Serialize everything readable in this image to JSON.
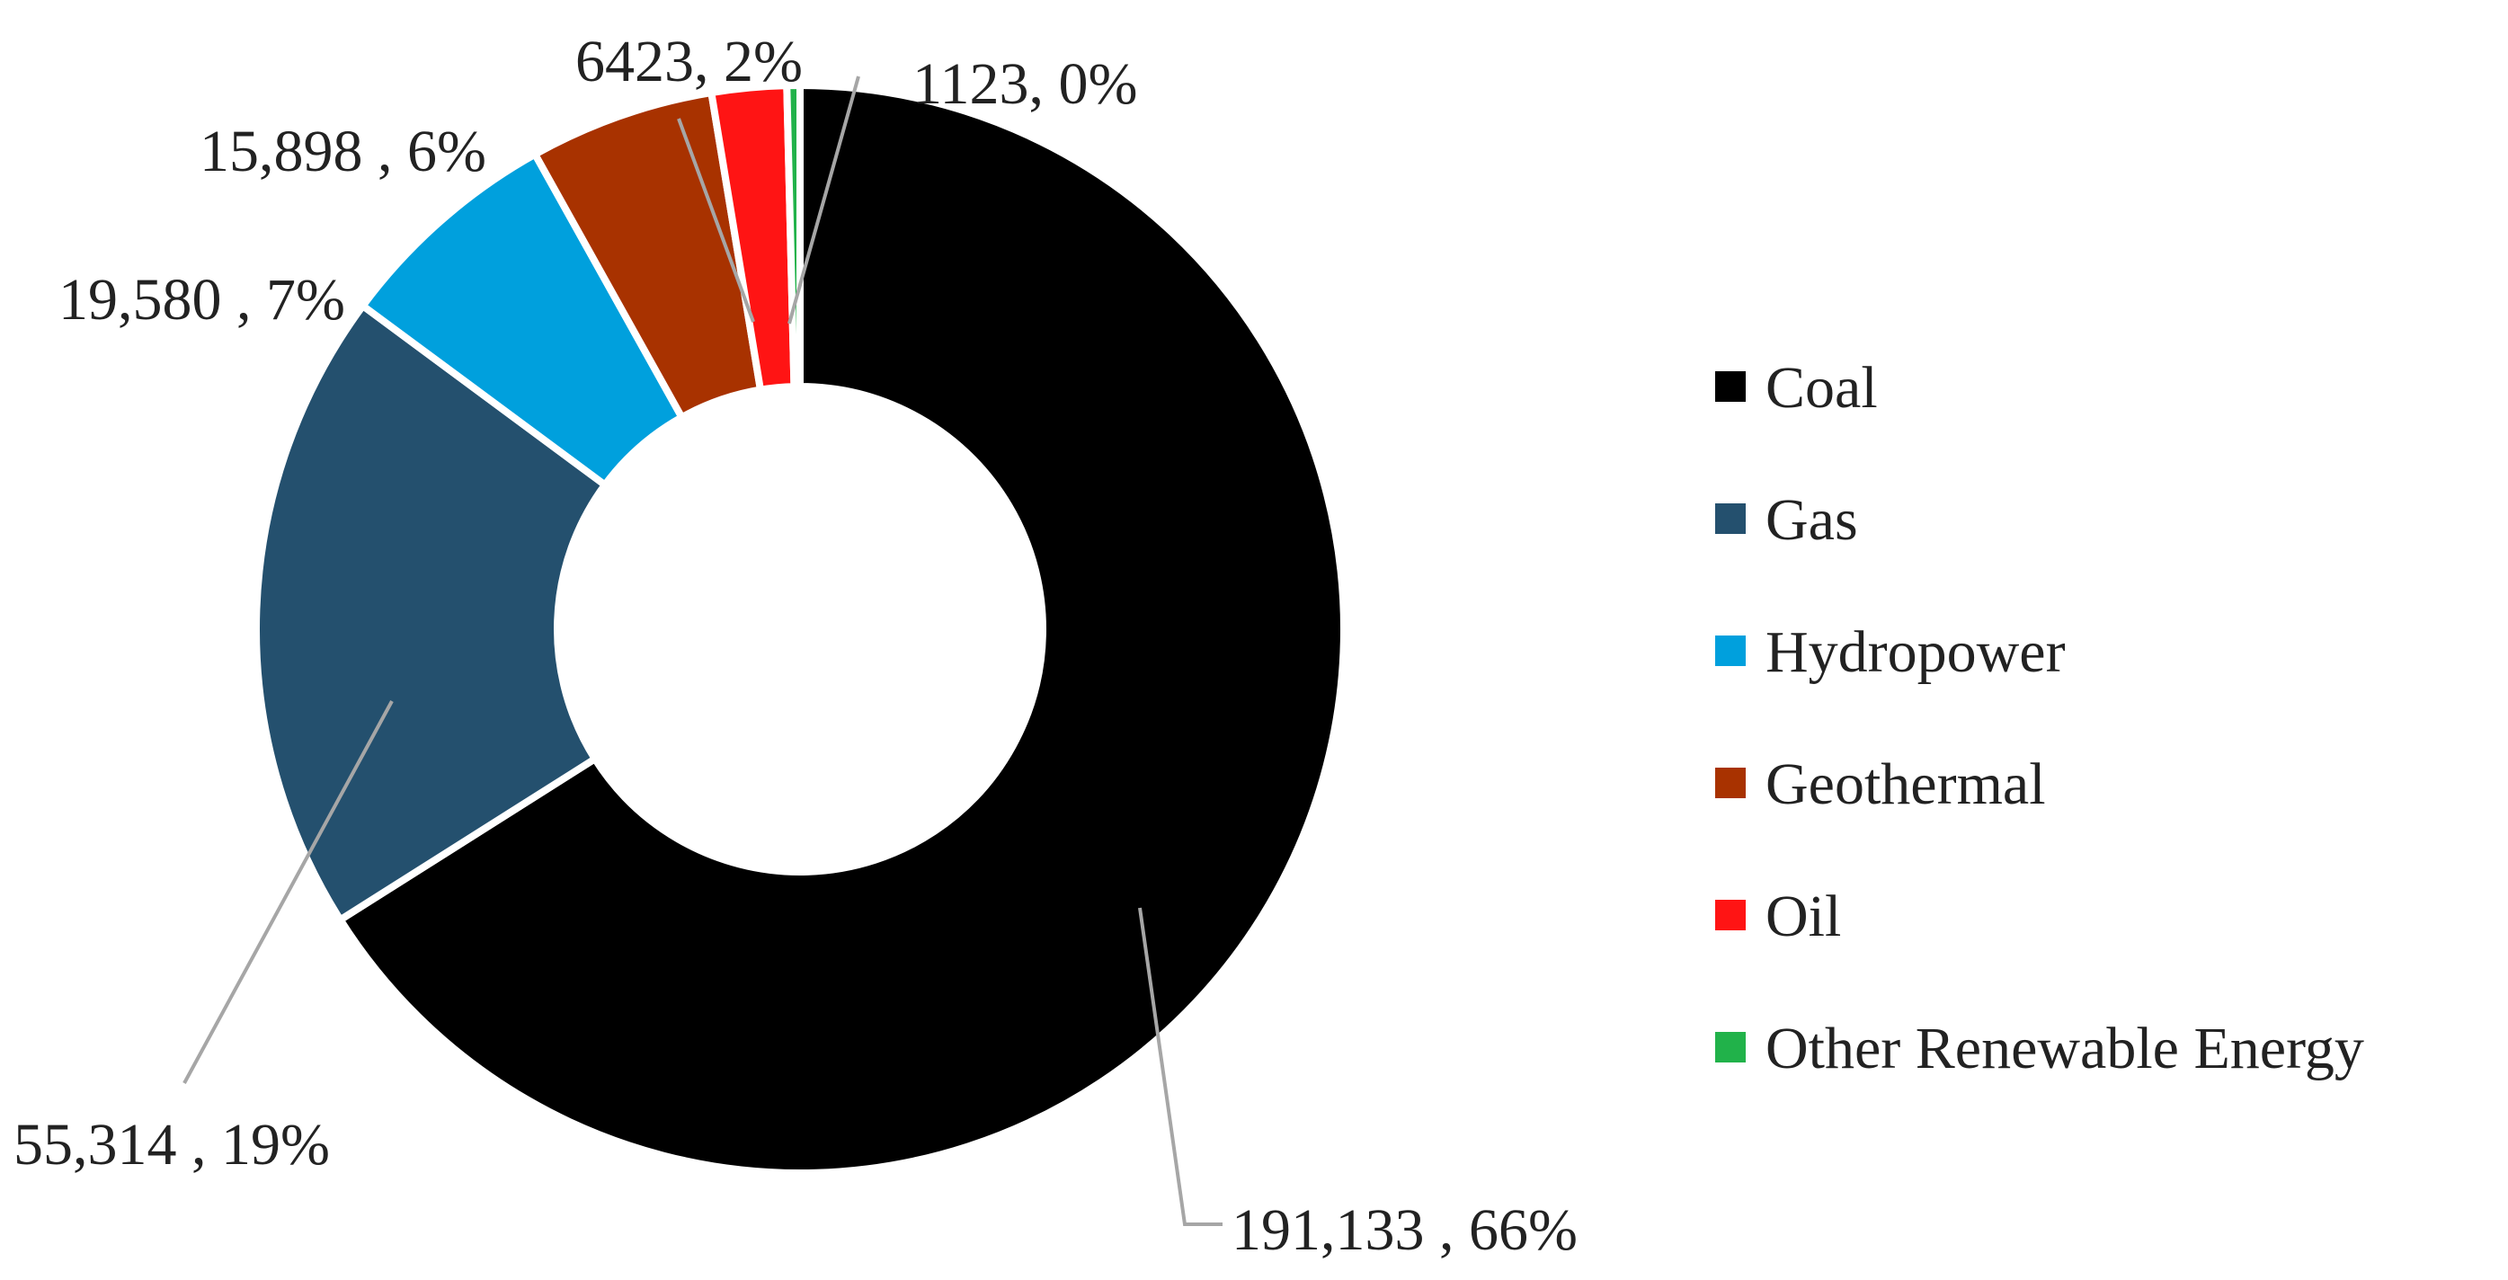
{
  "chart_data": {
    "type": "pie",
    "variant": "donut",
    "title": "",
    "legend_position": "right",
    "slices": [
      {
        "name": "Coal",
        "value": 191133,
        "value_label": "191,133 ",
        "percent_label": "66%",
        "color": "#000000"
      },
      {
        "name": "Gas",
        "value": 55314,
        "value_label": "55,314 ",
        "percent_label": "19%",
        "color": "#24506e"
      },
      {
        "name": "Hydropower",
        "value": 19580,
        "value_label": "19,580 ",
        "percent_label": "7%",
        "color": "#00a0dd"
      },
      {
        "name": "Geothermal",
        "value": 15898,
        "value_label": "15,898 ",
        "percent_label": "6%",
        "color": "#a83200"
      },
      {
        "name": "Oil",
        "value": 6423,
        "value_label": "6423",
        "percent_label": "2%",
        "color": "#ff1414"
      },
      {
        "name": "Other Renewable Energy",
        "value": 1123,
        "value_label": "1123",
        "percent_label": "0%",
        "color": "#21b24a"
      }
    ]
  }
}
